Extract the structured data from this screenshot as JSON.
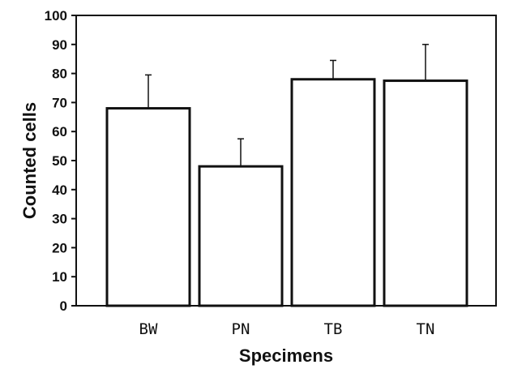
{
  "chart_data": {
    "type": "bar",
    "categories": [
      "BW",
      "PN",
      "TB",
      "TN"
    ],
    "values": [
      68,
      48,
      78,
      77.5
    ],
    "error_upper": [
      79.5,
      57.5,
      84.5,
      90
    ],
    "title": "",
    "xlabel": "Specimens",
    "ylabel": "Counted cells",
    "ylim": [
      0,
      100
    ],
    "yticks": [
      0,
      10,
      20,
      30,
      40,
      50,
      60,
      70,
      80,
      90,
      100
    ],
    "grid": false,
    "colors": {
      "bar_fill": "#ffffff",
      "bar_stroke": "#111111",
      "axis": "#111111"
    }
  }
}
